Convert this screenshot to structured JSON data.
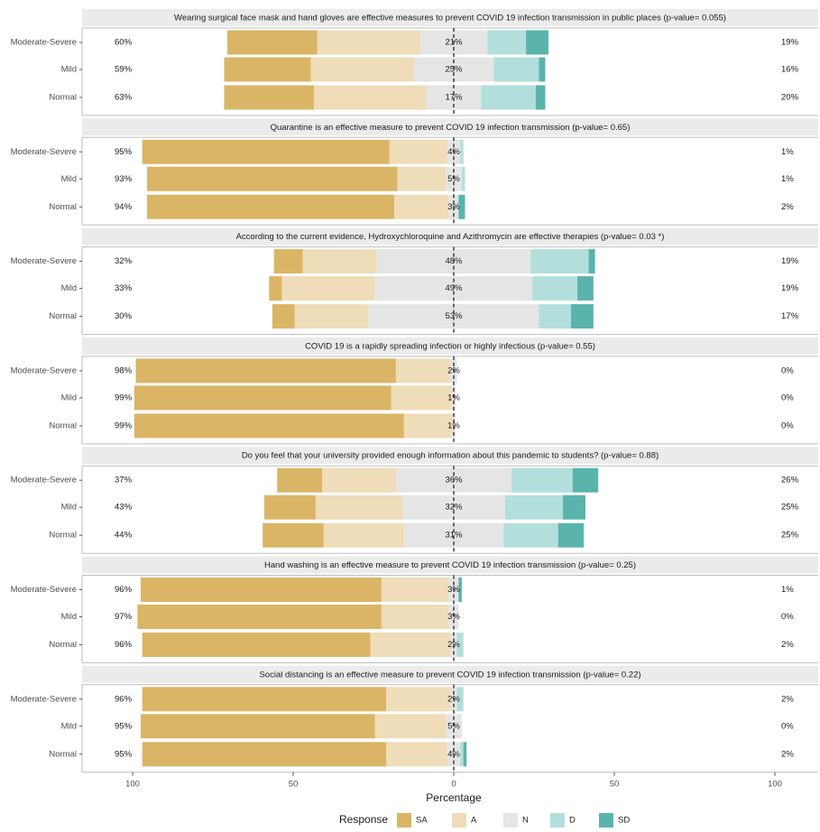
{
  "chart_data": {
    "type": "bar",
    "orientation": "horizontal-diverging",
    "xlabel": "Percentage",
    "x_ticks": [
      "100",
      "50",
      "0",
      "50",
      "100"
    ],
    "xlim": [
      -100,
      100
    ],
    "legend": {
      "title": "Response",
      "placement": "bottom",
      "items": [
        {
          "key": "SA",
          "label": "SA",
          "color": "#dab566"
        },
        {
          "key": "A",
          "label": "A",
          "color": "#efdcb8"
        },
        {
          "key": "N",
          "label": "N",
          "color": "#e5e5e5"
        },
        {
          "key": "D",
          "label": "D",
          "color": "#b2dfdb"
        },
        {
          "key": "SD",
          "label": "SD",
          "color": "#5ab4ac"
        }
      ]
    },
    "groups": [
      "Moderate-Severe",
      "Mild",
      "Normal"
    ],
    "panels": [
      {
        "title": "Wearing surgical face mask and hand gloves are effective measures to prevent COVID 19 infection transmission in public places (p-value= 0.055)",
        "rows": [
          {
            "group": "Moderate-Severe",
            "SA": 28,
            "A": 32,
            "N": 21,
            "D": 12,
            "SD": 7,
            "left_label": "60%",
            "center_label": "21%",
            "right_label": "19%"
          },
          {
            "group": "Mild",
            "SA": 27,
            "A": 32,
            "N": 25,
            "D": 14,
            "SD": 2,
            "left_label": "59%",
            "center_label": "25%",
            "right_label": "16%"
          },
          {
            "group": "Normal",
            "SA": 28,
            "A": 35,
            "N": 17,
            "D": 17,
            "SD": 3,
            "left_label": "63%",
            "center_label": "17%",
            "right_label": "20%"
          }
        ]
      },
      {
        "title": "Quarantine is an effective measure to prevent COVID 19 infection transmission (p-value= 0.65)",
        "rows": [
          {
            "group": "Moderate-Severe",
            "SA": 77,
            "A": 18,
            "N": 4,
            "D": 1,
            "SD": 0,
            "left_label": "95%",
            "center_label": "4%",
            "right_label": "1%"
          },
          {
            "group": "Mild",
            "SA": 78,
            "A": 15,
            "N": 5,
            "D": 1,
            "SD": 0,
            "left_label": "93%",
            "center_label": "5%",
            "right_label": "1%"
          },
          {
            "group": "Normal",
            "SA": 77,
            "A": 17,
            "N": 3,
            "D": 0,
            "SD": 2,
            "left_label": "94%",
            "center_label": "3%",
            "right_label": "2%"
          }
        ]
      },
      {
        "title": "According to the current evidence, Hydroxychloroquine and Azithromycin are effective therapies (p-value= 0.03 *)",
        "rows": [
          {
            "group": "Moderate-Severe",
            "SA": 9,
            "A": 23,
            "N": 48,
            "D": 18,
            "SD": 2,
            "left_label": "32%",
            "center_label": "48%",
            "right_label": "19%"
          },
          {
            "group": "Mild",
            "SA": 4,
            "A": 29,
            "N": 49,
            "D": 14,
            "SD": 5,
            "left_label": "33%",
            "center_label": "49%",
            "right_label": "19%"
          },
          {
            "group": "Normal",
            "SA": 7,
            "A": 23,
            "N": 53,
            "D": 10,
            "SD": 7,
            "left_label": "30%",
            "center_label": "53%",
            "right_label": "17%"
          }
        ]
      },
      {
        "title": "COVID 19 is a rapidly spreading infection or highly infectious (p-value= 0.55)",
        "rows": [
          {
            "group": "Moderate-Severe",
            "SA": 81,
            "A": 17,
            "N": 2,
            "D": 0,
            "SD": 0,
            "left_label": "98%",
            "center_label": "2%",
            "right_label": "0%"
          },
          {
            "group": "Mild",
            "SA": 80,
            "A": 19,
            "N": 1,
            "D": 0,
            "SD": 0,
            "left_label": "99%",
            "center_label": "1%",
            "right_label": "0%"
          },
          {
            "group": "Normal",
            "SA": 84,
            "A": 15,
            "N": 1,
            "D": 0,
            "SD": 0,
            "left_label": "99%",
            "center_label": "1%",
            "right_label": "0%"
          }
        ]
      },
      {
        "title": "Do you feel that your university provided enough information about this pandemic to students? (p-value= 0.88)",
        "rows": [
          {
            "group": "Moderate-Severe",
            "SA": 14,
            "A": 23,
            "N": 36,
            "D": 19,
            "SD": 8,
            "left_label": "37%",
            "center_label": "36%",
            "right_label": "26%"
          },
          {
            "group": "Mild",
            "SA": 16,
            "A": 27,
            "N": 32,
            "D": 18,
            "SD": 7,
            "left_label": "43%",
            "center_label": "32%",
            "right_label": "25%"
          },
          {
            "group": "Normal",
            "SA": 19,
            "A": 25,
            "N": 31,
            "D": 17,
            "SD": 8,
            "left_label": "44%",
            "center_label": "31%",
            "right_label": "25%"
          }
        ]
      },
      {
        "title": "Hand washing is an effective measure to prevent COVID 19 infection transmission (p-value= 0.25)",
        "rows": [
          {
            "group": "Moderate-Severe",
            "SA": 75,
            "A": 21,
            "N": 3,
            "D": 0,
            "SD": 1,
            "left_label": "96%",
            "center_label": "3%",
            "right_label": "1%"
          },
          {
            "group": "Mild",
            "SA": 76,
            "A": 21,
            "N": 3,
            "D": 0,
            "SD": 0,
            "left_label": "97%",
            "center_label": "3%",
            "right_label": "0%"
          },
          {
            "group": "Normal",
            "SA": 71,
            "A": 25,
            "N": 2,
            "D": 2,
            "SD": 0,
            "left_label": "96%",
            "center_label": "2%",
            "right_label": "2%"
          }
        ]
      },
      {
        "title": "Social distancing is an effective measure to prevent COVID 19 infection transmission (p-value= 0.22)",
        "rows": [
          {
            "group": "Moderate-Severe",
            "SA": 76,
            "A": 20,
            "N": 2,
            "D": 2,
            "SD": 0,
            "left_label": "96%",
            "center_label": "2%",
            "right_label": "2%"
          },
          {
            "group": "Mild",
            "SA": 73,
            "A": 22,
            "N": 5,
            "D": 0,
            "SD": 0,
            "left_label": "95%",
            "center_label": "5%",
            "right_label": "0%"
          },
          {
            "group": "Normal",
            "SA": 76,
            "A": 19,
            "N": 4,
            "D": 1,
            "SD": 1,
            "left_label": "95%",
            "center_label": "4%",
            "right_label": "2%"
          }
        ]
      }
    ]
  }
}
